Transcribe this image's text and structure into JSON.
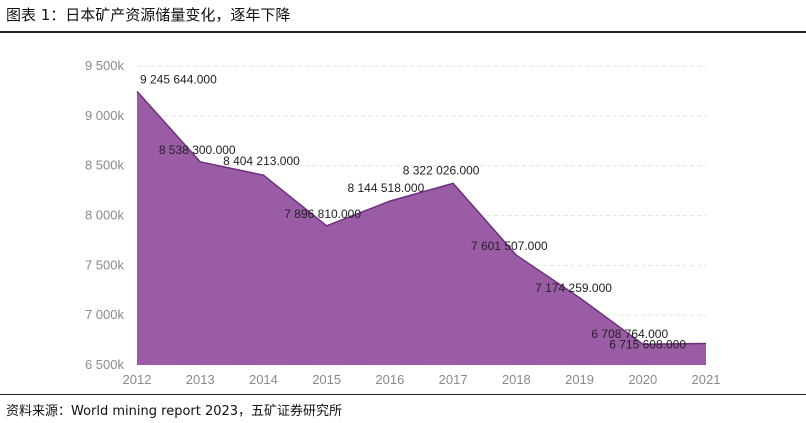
{
  "figure": {
    "title": "图表 1：日本矿产资源储量变化，逐年下降",
    "source": "资料来源：World mining report 2023，五矿证券研究所"
  },
  "chart_data": {
    "type": "area",
    "x": [
      "2012",
      "2013",
      "2014",
      "2015",
      "2016",
      "2017",
      "2018",
      "2019",
      "2020",
      "2021"
    ],
    "values": [
      9245644,
      8538300,
      8404213,
      7896810,
      8144518,
      8322026,
      7601507,
      7174259,
      6708764,
      6715608
    ],
    "data_labels": [
      "9 245 644.000",
      "8 538 300.000",
      "8 404 213.000",
      "7 896 810.000",
      "8 144 518.000",
      "8 322 026.000",
      "7 601 507.000",
      "7 174 259.000",
      "6 708 764.000",
      "6 715 608.000"
    ],
    "yticks": [
      6500000,
      7000000,
      7500000,
      8000000,
      8500000,
      9000000,
      9500000
    ],
    "ytick_labels": [
      "6 500k",
      "7 000k",
      "7 500k",
      "8 000k",
      "8 500k",
      "9 000k",
      "9 500k"
    ],
    "ylim": [
      6500000,
      9500000
    ],
    "grid": true,
    "fill_color": "#9a5da5",
    "line_color": "#6e2f7d"
  }
}
